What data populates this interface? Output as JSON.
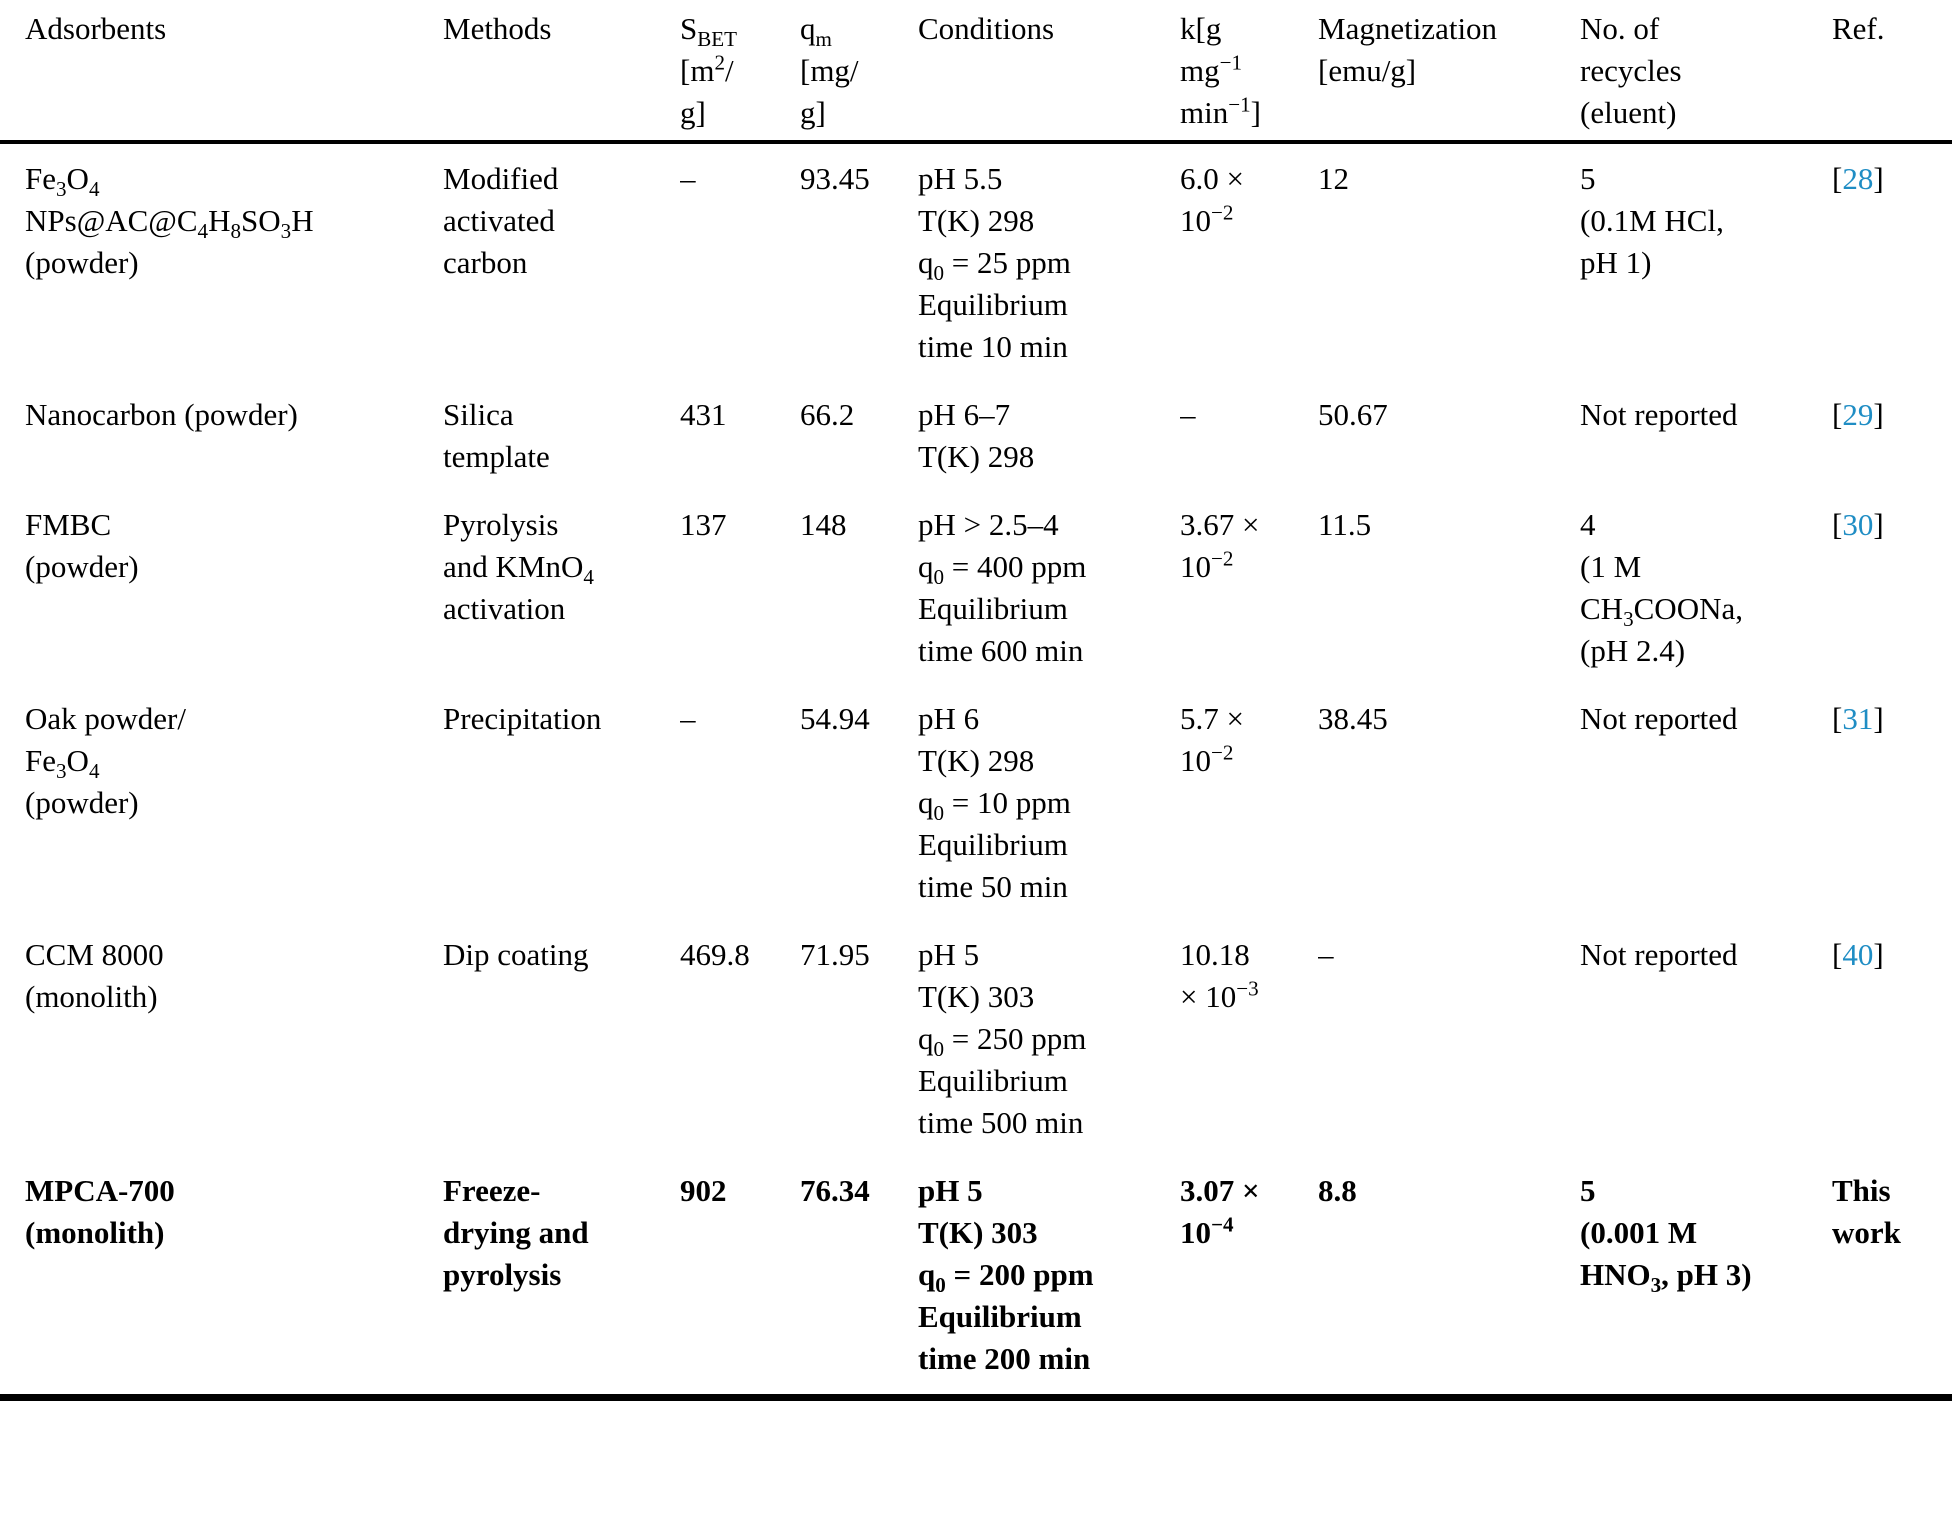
{
  "colors": {
    "text": "#000000",
    "ref_link": "#1f8dc4",
    "rule": "#000000",
    "background": "#ffffff"
  },
  "chart_data": {
    "type": "table",
    "columns": [
      "Adsorbents",
      "Methods",
      "S_BET [m2/g]",
      "q_m [mg/g]",
      "Conditions",
      "k [g mg-1 min-1]",
      "Magnetization [emu/g]",
      "No. of recycles (eluent)",
      "Ref."
    ],
    "rows_plain": [
      [
        "Fe3O4 NPs@AC@C4H8SO3H (powder)",
        "Modified activated carbon",
        null,
        93.45,
        "pH 5.5; T(K) 298; q0 = 25 ppm; Equilibrium time 10 min",
        "6.0 x 10^-2",
        12,
        "5 (0.1M HCl, pH 1)",
        "[28]"
      ],
      [
        "Nanocarbon (powder)",
        "Silica template",
        431,
        66.2,
        "pH 6-7; T(K) 298",
        null,
        50.67,
        "Not reported",
        "[29]"
      ],
      [
        "FMBC (powder)",
        "Pyrolysis and KMnO4 activation",
        137,
        148,
        "pH > 2.5-4; q0 = 400 ppm; Equilibrium time 600 min",
        "3.67 x 10^-2",
        11.5,
        "4 (1 M CH3COONa, (pH 2.4)",
        "[30]"
      ],
      [
        "Oak powder/Fe3O4 (powder)",
        "Precipitation",
        null,
        54.94,
        "pH 6; T(K) 298; q0 = 10 ppm; Equilibrium time 50 min",
        "5.7 x 10^-2",
        38.45,
        "Not reported",
        "[31]"
      ],
      [
        "CCM 8000 (monolith)",
        "Dip coating",
        469.8,
        71.95,
        "pH 5; T(K) 303; q0 = 250 ppm; Equilibrium time 500 min",
        "10.18 x 10^-3",
        null,
        "Not reported",
        "[40]"
      ],
      [
        "MPCA-700 (monolith)",
        "Freeze-drying and pyrolysis",
        902,
        76.34,
        "pH 5; T(K) 303; q0 = 200 ppm; Equilibrium time 200 min",
        "3.07 x 10^-4",
        8.8,
        "5 (0.001 M HNO3, pH 3)",
        "This work"
      ]
    ]
  },
  "header": {
    "adsorbents": "Adsorbents",
    "methods": "Methods",
    "sbet": "S<sub>BET</sub><br>[m<sup>2</sup>/<br>g]",
    "qm": "q<sub>m</sub><br>[mg/<br>g]",
    "conditions": "Conditions",
    "k": "k[g<br>mg<sup>−1</sup><br>min<sup>−1</sup>]",
    "magnetization": "Magnetization<br>[emu/g]",
    "recycles": "No. of<br>recycles<br>(eluent)",
    "ref": "Ref."
  },
  "rows": [
    {
      "adsorbent": "Fe<sub>3</sub>O<sub>4</sub><br>NPs@AC@C<sub>4</sub>H<sub>8</sub>SO<sub>3</sub>H<br>(powder)",
      "method": "Modified<br>activated<br>carbon",
      "sbet": "–",
      "qm": "93.45",
      "conditions": "pH 5.5<br>T(K) 298<br>q<sub>0</sub> = 25 ppm<br>Equilibrium<br>time 10 min",
      "k": "6.0 ×<br>10<sup>−2</sup>",
      "magnetization": "12",
      "recycles": "5<br>(0.1M HCl,<br>pH 1)",
      "ref": "[<span class=\"ref-num\">28</span>]"
    },
    {
      "adsorbent": "Nanocarbon (powder)",
      "method": "Silica<br>template",
      "sbet": "431",
      "qm": "66.2",
      "conditions": "pH 6–7<br>T(K) 298",
      "k": "–",
      "magnetization": "50.67",
      "recycles": "Not reported",
      "ref": "[<span class=\"ref-num\">29</span>]"
    },
    {
      "adsorbent": "FMBC<br>(powder)",
      "method": "Pyrolysis<br>and KMnO<sub>4</sub><br>activation",
      "sbet": "137",
      "qm": "148",
      "conditions": "pH > 2.5–4<br>q<sub>0</sub> = 400 ppm<br>Equilibrium<br>time 600 min",
      "k": "3.67 ×<br>10<sup>−2</sup>",
      "magnetization": "11.5",
      "recycles": "4<br>(1 M<br>CH<sub>3</sub>COONa,<br>(pH 2.4)",
      "ref": "[<span class=\"ref-num\">30</span>]"
    },
    {
      "adsorbent": "Oak powder/<br>Fe<sub>3</sub>O<sub>4</sub><br>(powder)",
      "method": "Precipitation",
      "sbet": "–",
      "qm": "54.94",
      "conditions": "pH 6<br>T(K) 298<br>q<sub>0</sub> = 10 ppm<br>Equilibrium<br>time 50 min",
      "k": "5.7 ×<br>10<sup>−2</sup>",
      "magnetization": "38.45",
      "recycles": "Not reported",
      "ref": "[<span class=\"ref-num\">31</span>]"
    },
    {
      "adsorbent": "CCM 8000<br>(monolith)",
      "method": "Dip coating",
      "sbet": "469.8",
      "qm": "71.95",
      "conditions": "pH 5<br>T(K) 303<br>q<sub>0</sub> = 250 ppm<br>Equilibrium<br>time 500 min",
      "k": "10.18<br>× 10<sup>−3</sup>",
      "magnetization": "–",
      "recycles": "Not reported",
      "ref": "[<span class=\"ref-num\">40</span>]"
    },
    {
      "adsorbent": "MPCA-700<br>(monolith)",
      "method": "Freeze-<br>drying and<br>pyrolysis",
      "sbet": "902",
      "qm": "76.34",
      "conditions": "pH 5<br>T(K) 303<br>q<sub>0</sub> = 200 ppm<br>Equilibrium<br>time 200 min",
      "k": "3.07 ×<br>10<sup>−4</sup>",
      "magnetization": "8.8",
      "recycles": "5<br>(0.001 M<br>HNO<sub>3</sub>, pH 3)",
      "ref": "This<br>work"
    }
  ]
}
